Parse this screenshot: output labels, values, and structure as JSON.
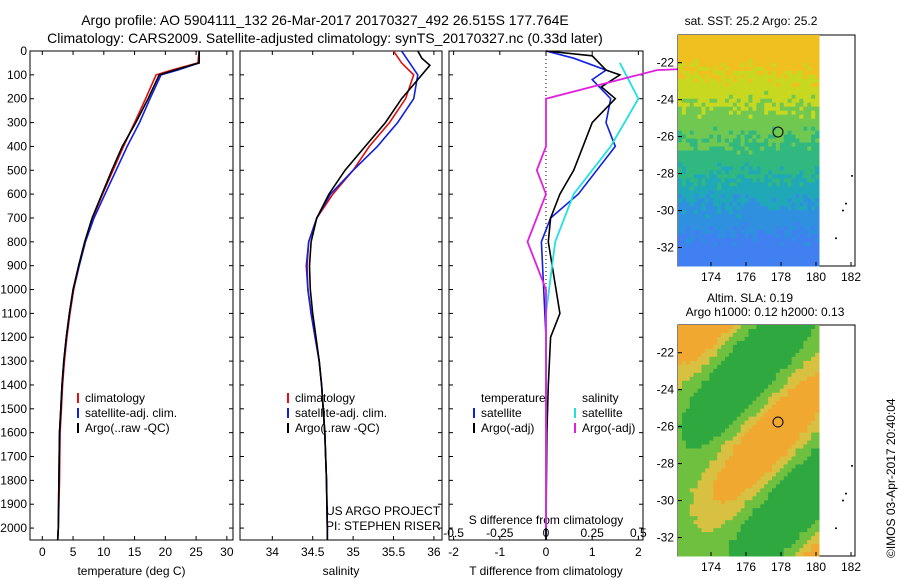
{
  "header": {
    "line1": "Argo profile: AO 5904111_132 26-Mar-2017 20170327_492 26.515S 177.764E",
    "line2": "Climatology: CARS2009. Satellite-adjusted climatology: synTS_20170327.nc (0.33d later)"
  },
  "sst_map": {
    "title": "sat. SST: 25.2 Argo: 25.2"
  },
  "sla_map": {
    "title1": "Altim. SLA: 0.19",
    "title2": "Argo h1000: 0.12 h2000: 0.13"
  },
  "map_axes": {
    "xticks": [
      "174",
      "176",
      "178",
      "180",
      "182"
    ],
    "sst_yticks": [
      "-22",
      "-24",
      "-26",
      "-28",
      "-30",
      "-32"
    ],
    "sla_yticks": [
      "-22",
      "-24",
      "-26",
      "-28",
      "-30",
      "-32"
    ]
  },
  "credits": {
    "project": "US ARGO PROJECT",
    "pi": "PI: STEPHEN RISER",
    "stamp": "©IMOS 03-Apr-2017 20:40:04"
  },
  "colors": {
    "climatology": "#e01010",
    "satellite": "#1020e0",
    "argo": "#000000",
    "cyan": "#20e0e0",
    "magenta": "#e020e0"
  },
  "chart_data": [
    {
      "type": "line",
      "xlabel": "temperature (deg C)",
      "ylabel": "",
      "xlim": [
        -2,
        31
      ],
      "ylim": [
        2050,
        0
      ],
      "xticks": [
        0,
        5,
        10,
        15,
        20,
        25,
        30
      ],
      "yticks": [
        0,
        100,
        200,
        300,
        400,
        500,
        600,
        700,
        800,
        900,
        1000,
        1100,
        1200,
        1300,
        1400,
        1500,
        1600,
        1700,
        1800,
        1900,
        2000
      ],
      "legend": [
        "climatology",
        "satellite-adj. clim.",
        "Argo(..raw -QC)"
      ],
      "series": [
        {
          "name": "climatology",
          "color": "#e01010",
          "points": [
            [
              25.5,
              0
            ],
            [
              25.3,
              50
            ],
            [
              21,
              80
            ],
            [
              18.5,
              100
            ],
            [
              16.8,
              200
            ],
            [
              15,
              300
            ],
            [
              13.2,
              400
            ],
            [
              11.5,
              500
            ],
            [
              9.8,
              600
            ],
            [
              8.2,
              700
            ],
            [
              7,
              800
            ],
            [
              6,
              900
            ],
            [
              5.1,
              1000
            ],
            [
              4.5,
              1100
            ],
            [
              4,
              1200
            ],
            [
              3.6,
              1300
            ],
            [
              3.3,
              1400
            ],
            [
              3.1,
              1500
            ],
            [
              2.9,
              1600
            ],
            [
              2.8,
              1800
            ],
            [
              2.6,
              2000
            ],
            [
              2.5,
              2050
            ]
          ]
        },
        {
          "name": "satellite-adj. clim.",
          "color": "#1020e0",
          "points": [
            [
              25.5,
              0
            ],
            [
              25.5,
              50
            ],
            [
              22,
              80
            ],
            [
              19.3,
              100
            ],
            [
              17.5,
              200
            ],
            [
              15.8,
              300
            ],
            [
              13.8,
              400
            ],
            [
              12,
              500
            ],
            [
              10.2,
              600
            ],
            [
              8.4,
              700
            ],
            [
              7,
              800
            ],
            [
              6,
              900
            ],
            [
              5,
              1000
            ],
            [
              4.4,
              1100
            ],
            [
              3.9,
              1200
            ],
            [
              3.5,
              1300
            ],
            [
              3.2,
              1400
            ],
            [
              3,
              1500
            ],
            [
              2.8,
              1600
            ],
            [
              2.7,
              1800
            ],
            [
              2.6,
              2000
            ],
            [
              2.5,
              2050
            ]
          ]
        },
        {
          "name": "Argo(..raw -QC)",
          "color": "#000000",
          "points": [
            [
              25.5,
              0
            ],
            [
              25.5,
              50
            ],
            [
              21.5,
              80
            ],
            [
              19,
              100
            ],
            [
              17.2,
              200
            ],
            [
              15.2,
              300
            ],
            [
              13,
              400
            ],
            [
              11.3,
              500
            ],
            [
              9.7,
              600
            ],
            [
              8.1,
              700
            ],
            [
              6.9,
              800
            ],
            [
              5.9,
              900
            ],
            [
              5,
              1000
            ],
            [
              4.4,
              1100
            ],
            [
              3.9,
              1200
            ],
            [
              3.5,
              1300
            ],
            [
              3.2,
              1400
            ],
            [
              3,
              1500
            ],
            [
              2.8,
              1600
            ],
            [
              2.7,
              1800
            ],
            [
              2.6,
              2000
            ],
            [
              2.5,
              2050
            ]
          ]
        }
      ]
    },
    {
      "type": "line",
      "xlabel": "salinity",
      "ylabel": "",
      "xlim": [
        33.6,
        36.1
      ],
      "ylim": [
        2050,
        0
      ],
      "xticks": [
        34,
        34.5,
        35,
        35.5,
        36
      ],
      "legend": [
        "climatology",
        "satellite-adj. clim.",
        "Argo(..raw -QC)"
      ],
      "series": [
        {
          "name": "climatology",
          "color": "#e01010",
          "points": [
            [
              35.5,
              0
            ],
            [
              35.6,
              50
            ],
            [
              35.75,
              100
            ],
            [
              35.65,
              200
            ],
            [
              35.45,
              300
            ],
            [
              35.2,
              400
            ],
            [
              35,
              500
            ],
            [
              34.75,
              600
            ],
            [
              34.55,
              700
            ],
            [
              34.45,
              800
            ],
            [
              34.43,
              900
            ],
            [
              34.44,
              1000
            ],
            [
              34.48,
              1100
            ],
            [
              34.53,
              1200
            ],
            [
              34.58,
              1300
            ],
            [
              34.61,
              1400
            ],
            [
              34.63,
              1500
            ],
            [
              34.65,
              1600
            ],
            [
              34.67,
              1800
            ],
            [
              34.68,
              2000
            ],
            [
              34.68,
              2050
            ]
          ]
        },
        {
          "name": "satellite-adj. clim.",
          "color": "#1020e0",
          "points": [
            [
              35.6,
              0
            ],
            [
              35.7,
              50
            ],
            [
              35.8,
              100
            ],
            [
              35.75,
              200
            ],
            [
              35.55,
              300
            ],
            [
              35.3,
              400
            ],
            [
              35,
              500
            ],
            [
              34.72,
              600
            ],
            [
              34.55,
              700
            ],
            [
              34.45,
              800
            ],
            [
              34.42,
              900
            ],
            [
              34.44,
              1000
            ],
            [
              34.48,
              1100
            ],
            [
              34.53,
              1200
            ],
            [
              34.58,
              1300
            ],
            [
              34.61,
              1400
            ],
            [
              34.63,
              1500
            ],
            [
              34.65,
              1600
            ],
            [
              34.67,
              1800
            ],
            [
              34.68,
              2000
            ],
            [
              34.68,
              2050
            ]
          ]
        },
        {
          "name": "Argo(..raw -QC)",
          "color": "#000000",
          "points": [
            [
              35.8,
              0
            ],
            [
              35.85,
              30
            ],
            [
              35.95,
              60
            ],
            [
              35.85,
              100
            ],
            [
              35.6,
              200
            ],
            [
              35.4,
              300
            ],
            [
              35.15,
              400
            ],
            [
              34.9,
              500
            ],
            [
              34.7,
              600
            ],
            [
              34.55,
              700
            ],
            [
              34.48,
              800
            ],
            [
              34.46,
              900
            ],
            [
              34.47,
              1000
            ],
            [
              34.5,
              1100
            ],
            [
              34.54,
              1200
            ],
            [
              34.58,
              1300
            ],
            [
              34.61,
              1400
            ],
            [
              34.63,
              1500
            ],
            [
              34.65,
              1600
            ],
            [
              34.67,
              1800
            ],
            [
              34.68,
              2000
            ],
            [
              34.68,
              2050
            ]
          ]
        }
      ]
    },
    {
      "type": "line",
      "xlabel": "T difference from climatology",
      "xlabel_top": "S difference from climatology",
      "xlim": [
        -2.1,
        2.1
      ],
      "ylim": [
        2050,
        0
      ],
      "xticks_T": [
        -2,
        -1,
        0,
        1,
        2
      ],
      "xticks_S": [
        "-0.5",
        "-0.25",
        "0",
        "0.25",
        "0.5"
      ],
      "legend_temperature": {
        "header": "temperature",
        "items": [
          "satellite",
          "Argo(-adj)"
        ]
      },
      "legend_salinity": {
        "header": "salinity",
        "items": [
          "satellite",
          "Argo(-adj)"
        ]
      },
      "series": [
        {
          "name": "satellite",
          "group": "temperature",
          "color": "#1020e0",
          "points": [
            [
              0,
              0
            ],
            [
              0.6,
              30
            ],
            [
              1.3,
              80
            ],
            [
              1.0,
              120
            ],
            [
              1.4,
              200
            ],
            [
              1.3,
              300
            ],
            [
              1.5,
              400
            ],
            [
              0.7,
              600
            ],
            [
              0.1,
              700
            ],
            [
              -0.1,
              800
            ],
            [
              -0.05,
              1000
            ],
            [
              0,
              1200
            ],
            [
              0,
              1500
            ],
            [
              0,
              2000
            ],
            [
              0,
              2050
            ]
          ]
        },
        {
          "name": "Argo(-adj)",
          "group": "temperature",
          "color": "#000000",
          "points": [
            [
              0,
              0
            ],
            [
              1.0,
              20
            ],
            [
              1.3,
              80
            ],
            [
              1.6,
              100
            ],
            [
              1.2,
              150
            ],
            [
              1.5,
              200
            ],
            [
              1.0,
              300
            ],
            [
              0.8,
              400
            ],
            [
              0.6,
              500
            ],
            [
              0.3,
              600
            ],
            [
              0.1,
              700
            ],
            [
              0.05,
              800
            ],
            [
              0.3,
              1100
            ],
            [
              0.1,
              1200
            ],
            [
              0.05,
              1400
            ],
            [
              0.02,
              1600
            ],
            [
              0,
              2000
            ],
            [
              0,
              2050
            ]
          ]
        },
        {
          "name": "satellite",
          "group": "salinity",
          "color": "#20e0e0",
          "points": [
            [
              0.4,
              50
            ],
            [
              0.5,
              200
            ],
            [
              0.35,
              400
            ],
            [
              0.15,
              600
            ],
            [
              0.05,
              800
            ],
            [
              0,
              1100
            ],
            [
              0,
              1500
            ],
            [
              0,
              2000
            ]
          ]
        },
        {
          "name": "Argo(-adj)",
          "group": "salinity",
          "color": "#e020e0",
          "points": [
            [
              1.5,
              50
            ],
            [
              0.6,
              80
            ],
            [
              0,
              200
            ],
            [
              0,
              400
            ],
            [
              -0.05,
              500
            ],
            [
              0,
              600
            ],
            [
              -0.1,
              800
            ],
            [
              0,
              1000
            ],
            [
              0,
              1500
            ],
            [
              0,
              2000
            ]
          ]
        }
      ]
    }
  ]
}
